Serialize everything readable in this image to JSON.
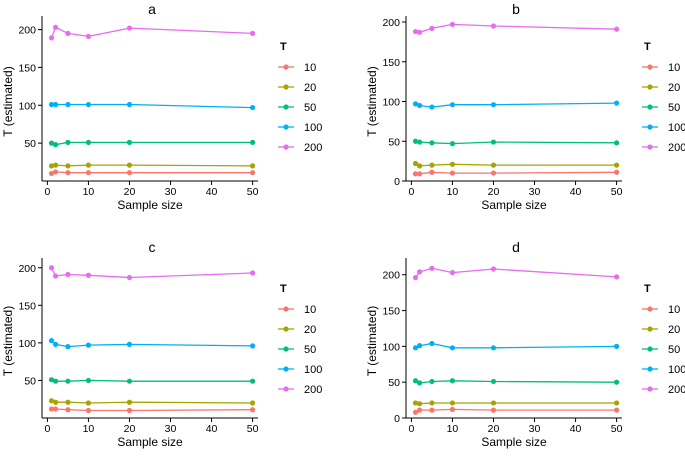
{
  "chart_data": [
    {
      "type": "line",
      "title": "a",
      "xlabel": "Sample size",
      "ylabel": "T (estimated)",
      "x": [
        1,
        2,
        5,
        10,
        20,
        50
      ],
      "xlim": [
        0,
        50
      ],
      "ylim": [
        0,
        210
      ],
      "xticks": [
        0,
        10,
        20,
        30,
        40,
        50
      ],
      "yticks": [
        50,
        100,
        150,
        200
      ],
      "legend_title": "T",
      "series": [
        {
          "name": "10",
          "color": "#F8766D",
          "values": [
            10,
            12,
            11,
            11,
            11,
            11
          ]
        },
        {
          "name": "20",
          "color": "#A3A500",
          "values": [
            20,
            21,
            20,
            21,
            21,
            20
          ]
        },
        {
          "name": "50",
          "color": "#00BF7D",
          "values": [
            50,
            48,
            51,
            51,
            51,
            51
          ]
        },
        {
          "name": "100",
          "color": "#00B0F6",
          "values": [
            101,
            101,
            101,
            101,
            101,
            97
          ]
        },
        {
          "name": "200",
          "color": "#E76BF3",
          "values": [
            189,
            203,
            195,
            191,
            202,
            195
          ]
        }
      ]
    },
    {
      "type": "line",
      "title": "b",
      "xlabel": "Sample size",
      "ylabel": "T (estimated)",
      "x": [
        1,
        2,
        5,
        10,
        20,
        50
      ],
      "xlim": [
        0,
        50
      ],
      "ylim": [
        0,
        200
      ],
      "xticks": [
        0,
        10,
        20,
        30,
        40,
        50
      ],
      "yticks": [
        0,
        50,
        100,
        150,
        200
      ],
      "legend_title": "T",
      "series": [
        {
          "name": "10",
          "color": "#F8766D",
          "values": [
            9,
            9,
            11,
            10,
            10,
            11
          ]
        },
        {
          "name": "20",
          "color": "#A3A500",
          "values": [
            22,
            19,
            20,
            21,
            20,
            20
          ]
        },
        {
          "name": "50",
          "color": "#00BF7D",
          "values": [
            50,
            49,
            48,
            47,
            49,
            48
          ]
        },
        {
          "name": "100",
          "color": "#00B0F6",
          "values": [
            97,
            95,
            93,
            96,
            96,
            98
          ]
        },
        {
          "name": "200",
          "color": "#E76BF3",
          "values": [
            188,
            187,
            192,
            197,
            195,
            191
          ]
        }
      ]
    },
    {
      "type": "line",
      "title": "c",
      "xlabel": "Sample size",
      "ylabel": "T (estimated)",
      "x": [
        1,
        2,
        5,
        10,
        20,
        50
      ],
      "xlim": [
        0,
        50
      ],
      "ylim": [
        0,
        205
      ],
      "xticks": [
        0,
        10,
        20,
        30,
        40,
        50
      ],
      "yticks": [
        50,
        100,
        150,
        200
      ],
      "legend_title": "T",
      "series": [
        {
          "name": "10",
          "color": "#F8766D",
          "values": [
            12,
            12,
            11,
            10,
            10,
            11
          ]
        },
        {
          "name": "20",
          "color": "#A3A500",
          "values": [
            23,
            21,
            21,
            20,
            21,
            20
          ]
        },
        {
          "name": "50",
          "color": "#00BF7D",
          "values": [
            51,
            49,
            49,
            50,
            49,
            49
          ]
        },
        {
          "name": "100",
          "color": "#00B0F6",
          "values": [
            103,
            98,
            95,
            97,
            98,
            96
          ]
        },
        {
          "name": "200",
          "color": "#E76BF3",
          "values": [
            200,
            189,
            191,
            190,
            187,
            193
          ]
        }
      ]
    },
    {
      "type": "line",
      "title": "d",
      "xlabel": "Sample size",
      "ylabel": "T (estimated)",
      "x": [
        1,
        2,
        5,
        10,
        20,
        50
      ],
      "xlim": [
        0,
        50
      ],
      "ylim": [
        0,
        215
      ],
      "xticks": [
        0,
        10,
        20,
        30,
        40,
        50
      ],
      "yticks": [
        0,
        50,
        100,
        150,
        200
      ],
      "legend_title": "T",
      "series": [
        {
          "name": "10",
          "color": "#F8766D",
          "values": [
            8,
            11,
            11,
            12,
            11,
            11
          ]
        },
        {
          "name": "20",
          "color": "#A3A500",
          "values": [
            21,
            20,
            21,
            21,
            21,
            21
          ]
        },
        {
          "name": "50",
          "color": "#00BF7D",
          "values": [
            52,
            49,
            51,
            52,
            51,
            50
          ]
        },
        {
          "name": "100",
          "color": "#00B0F6",
          "values": [
            98,
            101,
            104,
            98,
            98,
            100
          ]
        },
        {
          "name": "200",
          "color": "#E76BF3",
          "values": [
            196,
            204,
            209,
            203,
            208,
            197
          ]
        }
      ]
    }
  ]
}
